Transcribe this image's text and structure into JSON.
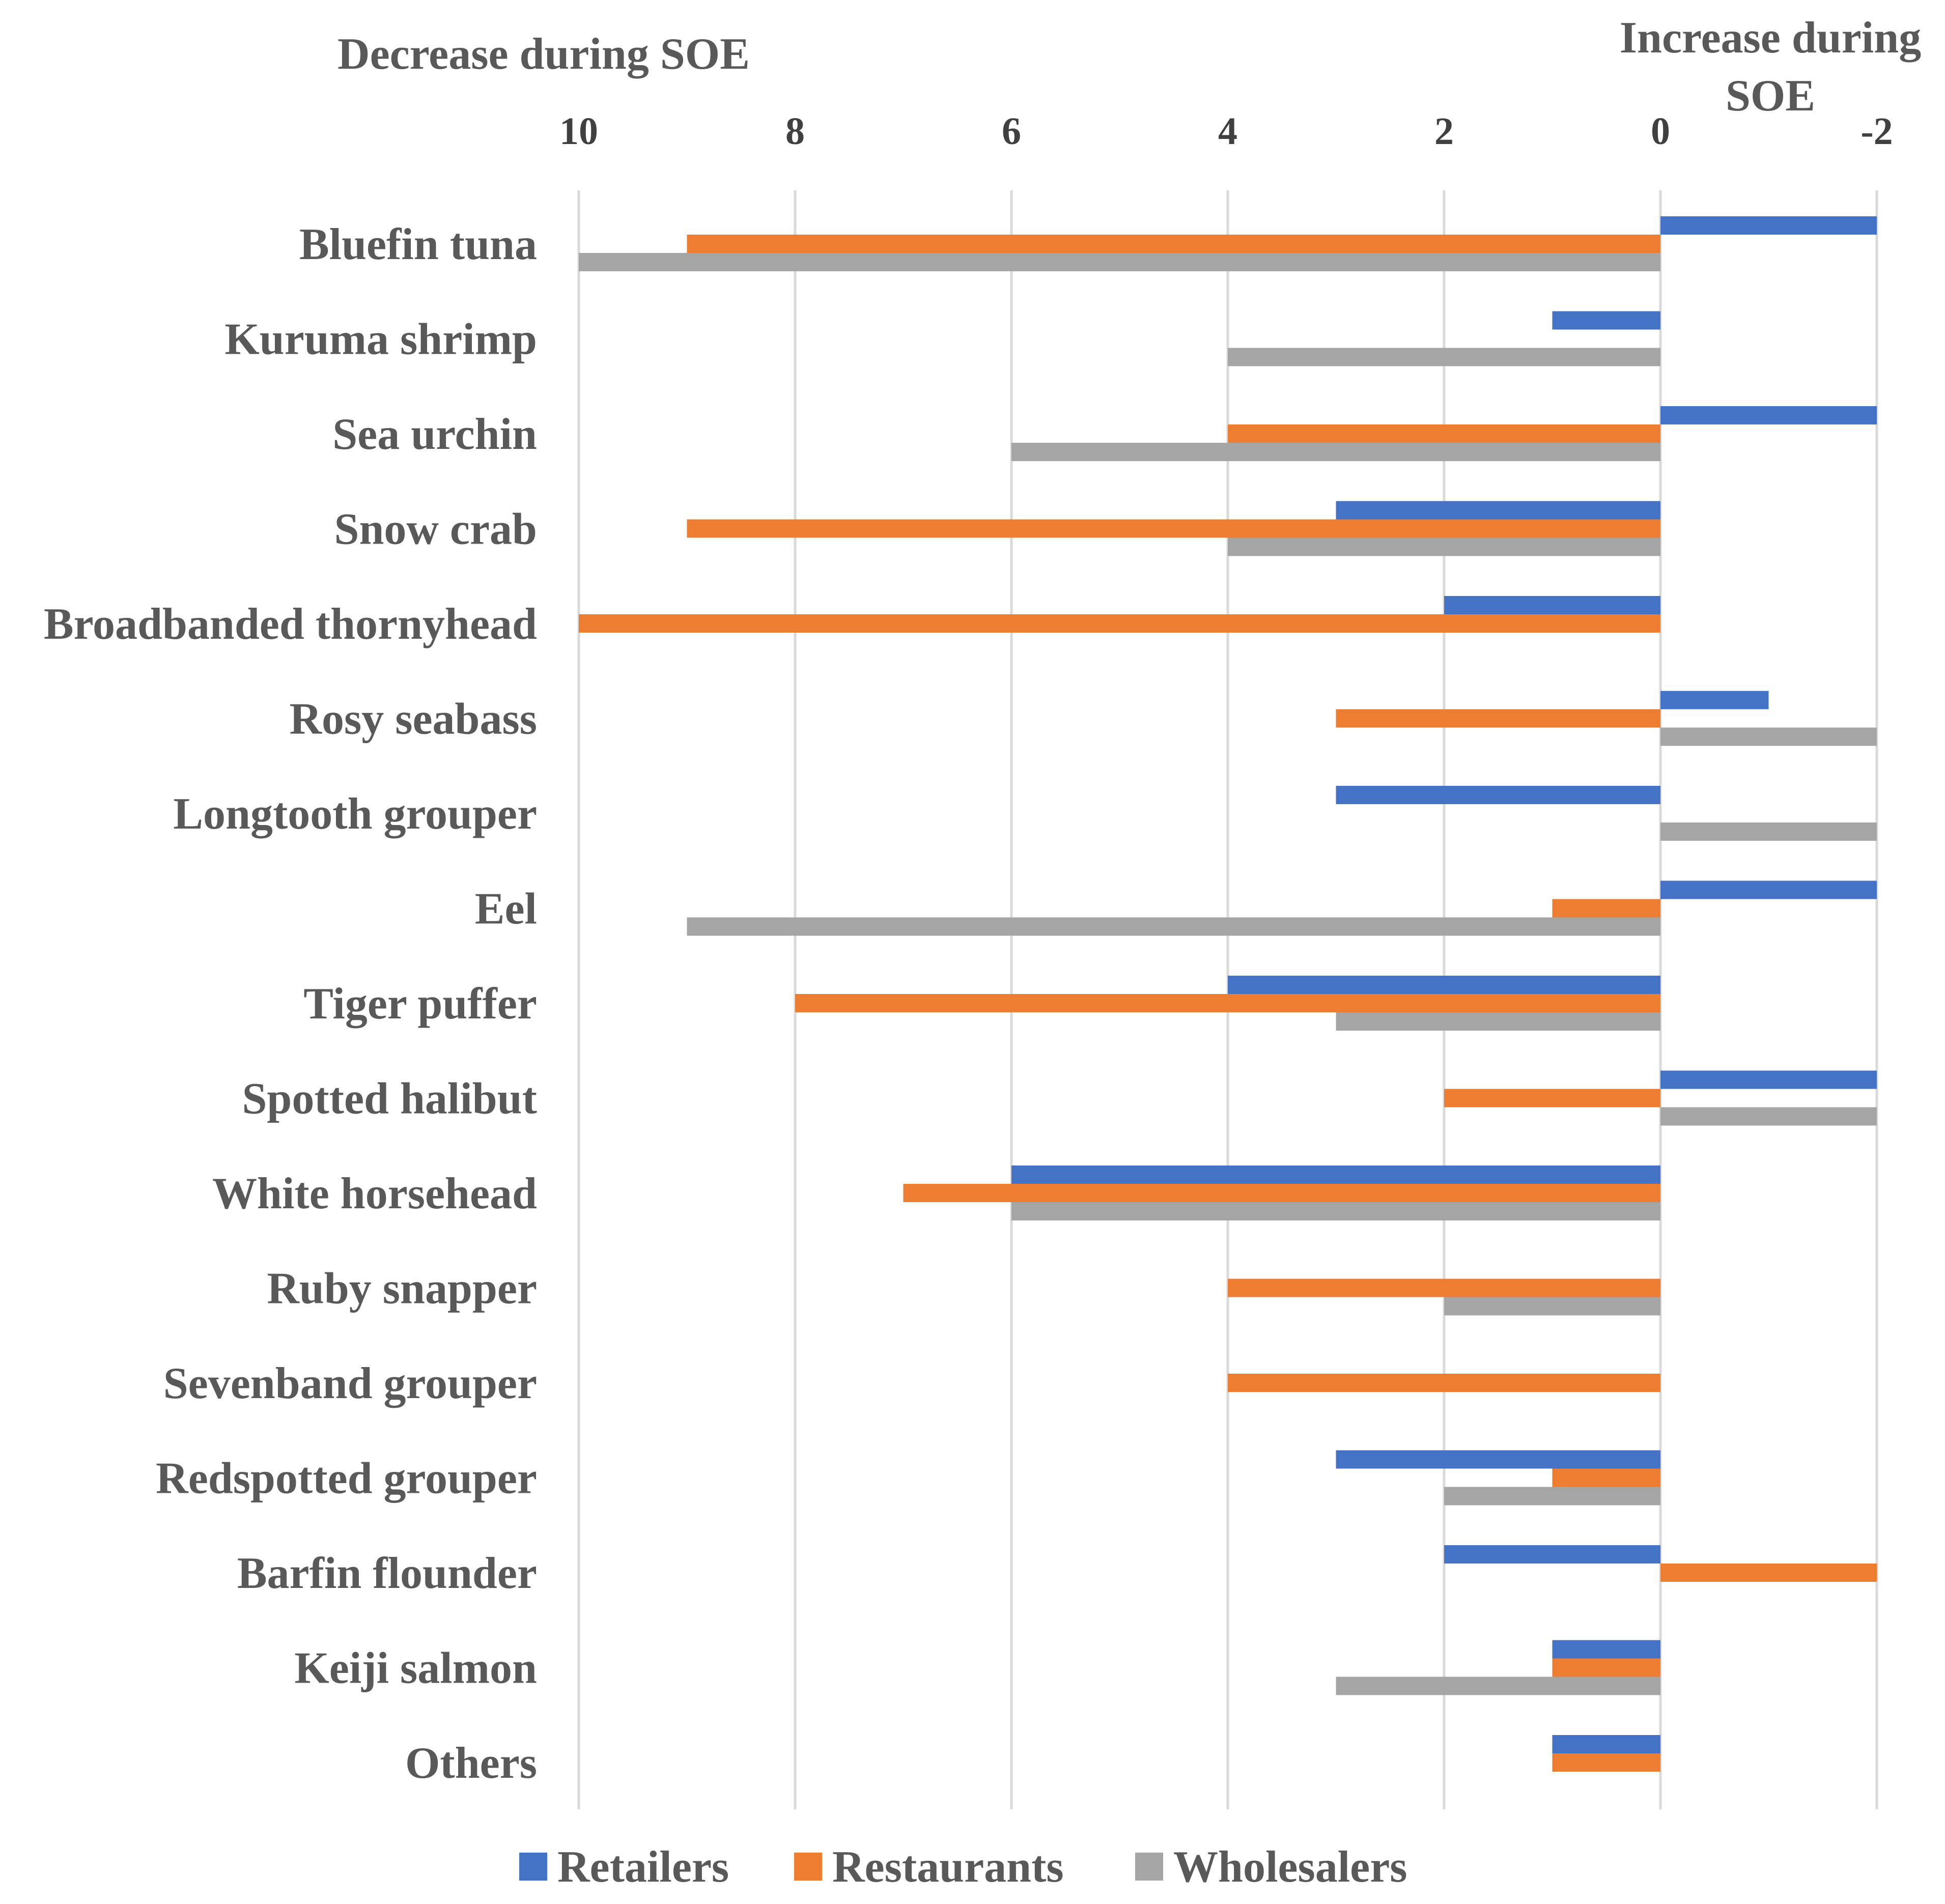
{
  "chart_data": {
    "type": "bar",
    "orientation": "horizontal",
    "x_axis": {
      "reversed": true,
      "position": "top",
      "min": -2,
      "max": 10,
      "ticks": [
        10,
        8,
        6,
        4,
        2,
        0,
        -2
      ],
      "tick_labels": [
        "10",
        "8",
        "6",
        "4",
        "2",
        "0",
        "-2"
      ],
      "gridlines": true
    },
    "header_left": "Decrease during SOE",
    "header_right_line1": "Increase during",
    "header_right_line2": "SOE",
    "categories": [
      "Bluefin tuna",
      "Kuruma shrimp",
      "Sea urchin",
      "Snow crab",
      "Broadbanded thornyhead",
      "Rosy seabass",
      "Longtooth grouper",
      "Eel",
      "Tiger puffer",
      "Spotted halibut",
      "White horsehead",
      "Ruby snapper",
      "Sevenband grouper",
      "Redspotted grouper",
      "Barfin flounder",
      "Keiji salmon",
      "Others"
    ],
    "series": [
      {
        "name": "Retailers",
        "color": "#4472C4",
        "values": [
          -2,
          1,
          -2,
          3,
          2,
          -1,
          3,
          -2,
          4,
          -2,
          6,
          0,
          0,
          3,
          2,
          1,
          1
        ]
      },
      {
        "name": "Restaurants",
        "color": "#ED7D31",
        "values": [
          9,
          0,
          4,
          9,
          10,
          3,
          0,
          1,
          8,
          2,
          7,
          4,
          4,
          1,
          -2,
          1,
          1
        ]
      },
      {
        "name": "Wholesalers",
        "color": "#A5A5A5",
        "values": [
          10,
          4,
          6,
          4,
          0,
          -2,
          -2,
          9,
          3,
          -2,
          6,
          2,
          0,
          2,
          0,
          3,
          0
        ]
      }
    ],
    "legend": {
      "position": "bottom"
    },
    "colors": {
      "gridline": "#D9D9D9",
      "label_text": "#595959",
      "tick_text": "#404040"
    }
  }
}
